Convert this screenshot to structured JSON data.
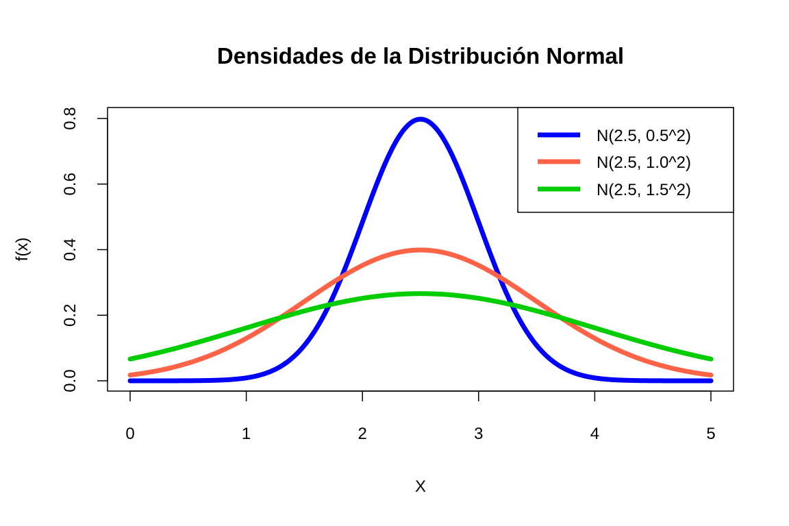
{
  "chart_data": {
    "type": "line",
    "title": "Densidades de la Distribución Normal",
    "xlabel": "X",
    "ylabel": "f(x)",
    "xlim": [
      0,
      5
    ],
    "ylim": [
      0,
      0.8
    ],
    "x_ticks": [
      "0",
      "1",
      "2",
      "3",
      "4",
      "5"
    ],
    "y_ticks": [
      "0.0",
      "0.2",
      "0.4",
      "0.6",
      "0.8"
    ],
    "grid": false,
    "legend_position": "top-right",
    "series": [
      {
        "name": "N(2.5, 0.5^2)",
        "color": "#0000ff",
        "mean": 2.5,
        "sd": 0.5,
        "x": [
          0,
          0.25,
          0.5,
          0.75,
          1.0,
          1.25,
          1.5,
          1.75,
          2.0,
          2.25,
          2.5,
          2.75,
          3.0,
          3.25,
          3.5,
          3.75,
          4.0,
          4.25,
          4.5,
          4.75,
          5.0
        ],
        "y": [
          0.0,
          0.0,
          0.0003,
          0.0017,
          0.0089,
          0.035,
          0.108,
          0.259,
          0.4839,
          0.7041,
          0.7979,
          0.7041,
          0.4839,
          0.259,
          0.108,
          0.035,
          0.0089,
          0.0017,
          0.0003,
          0.0,
          0.0
        ]
      },
      {
        "name": "N(2.5, 1.0^2)",
        "color": "#ff6347",
        "mean": 2.5,
        "sd": 1.0,
        "x": [
          0,
          0.25,
          0.5,
          0.75,
          1.0,
          1.25,
          1.5,
          1.75,
          2.0,
          2.25,
          2.5,
          2.75,
          3.0,
          3.25,
          3.5,
          3.75,
          4.0,
          4.25,
          4.5,
          4.75,
          5.0
        ],
        "y": [
          0.0175,
          0.0317,
          0.054,
          0.0863,
          0.1295,
          0.1826,
          0.242,
          0.3011,
          0.3521,
          0.3867,
          0.3989,
          0.3867,
          0.3521,
          0.3011,
          0.242,
          0.1826,
          0.1295,
          0.0863,
          0.054,
          0.0317,
          0.0175
        ]
      },
      {
        "name": "N(2.5, 1.5^2)",
        "color": "#00cd00",
        "mean": 2.5,
        "sd": 1.5,
        "x": [
          0,
          0.25,
          0.5,
          0.75,
          1.0,
          1.25,
          1.5,
          1.75,
          2.0,
          2.25,
          2.5,
          2.75,
          3.0,
          3.25,
          3.5,
          3.75,
          4.0,
          4.25,
          4.5,
          4.75,
          5.0
        ],
        "y": [
          0.0664,
          0.0863,
          0.1093,
          0.135,
          0.1613,
          0.188,
          0.213,
          0.235,
          0.2515,
          0.2623,
          0.266,
          0.2623,
          0.2515,
          0.235,
          0.213,
          0.188,
          0.1613,
          0.135,
          0.1093,
          0.0863,
          0.0664
        ]
      }
    ]
  }
}
